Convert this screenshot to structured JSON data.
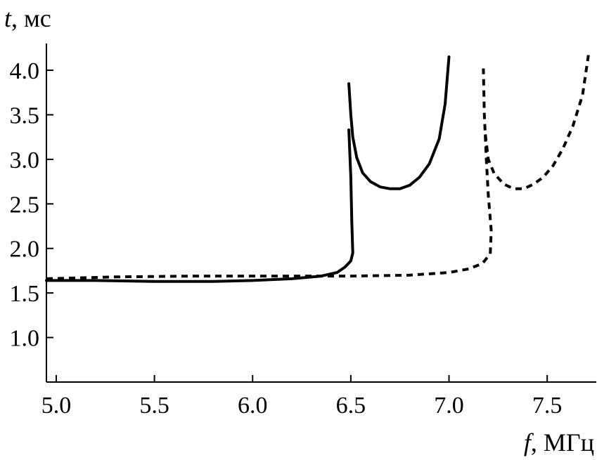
{
  "chart_data": {
    "type": "line",
    "title": "",
    "xlabel": {
      "symbol": "f",
      "unit": ", МГц"
    },
    "ylabel": {
      "symbol": "t",
      "unit": ", мс"
    },
    "xlim": [
      4.95,
      7.75
    ],
    "ylim": [
      0.5,
      4.3
    ],
    "x_ticks": [
      "5.0",
      "5.5",
      "6.0",
      "6.5",
      "7.0",
      "7.5"
    ],
    "y_ticks": [
      "1.0",
      "1.5",
      "2.0",
      "2.5",
      "3.0",
      "3.5",
      "4.0"
    ],
    "grid": false,
    "legend": "none",
    "series": [
      {
        "style": "solid",
        "segments": [
          [
            [
              4.95,
              1.64
            ],
            [
              5.2,
              1.64
            ],
            [
              5.5,
              1.63
            ],
            [
              5.8,
              1.63
            ],
            [
              6.0,
              1.64
            ],
            [
              6.2,
              1.66
            ],
            [
              6.35,
              1.69
            ],
            [
              6.43,
              1.73
            ],
            [
              6.47,
              1.79
            ],
            [
              6.5,
              1.86
            ],
            [
              6.51,
              1.95
            ],
            [
              6.505,
              2.3
            ],
            [
              6.5,
              2.8
            ],
            [
              6.49,
              3.33
            ]
          ],
          [
            [
              6.49,
              3.85
            ],
            [
              6.5,
              3.5
            ],
            [
              6.51,
              3.25
            ],
            [
              6.53,
              3.02
            ],
            [
              6.56,
              2.85
            ],
            [
              6.6,
              2.75
            ],
            [
              6.65,
              2.69
            ],
            [
              6.7,
              2.67
            ],
            [
              6.75,
              2.67
            ],
            [
              6.8,
              2.71
            ],
            [
              6.85,
              2.8
            ],
            [
              6.9,
              2.95
            ],
            [
              6.95,
              3.23
            ],
            [
              6.98,
              3.62
            ],
            [
              7.0,
              4.15
            ]
          ]
        ]
      },
      {
        "style": "dashed",
        "segments": [
          [
            [
              4.95,
              1.66
            ],
            [
              5.3,
              1.68
            ],
            [
              5.7,
              1.69
            ],
            [
              6.1,
              1.69
            ],
            [
              6.5,
              1.69
            ],
            [
              6.8,
              1.7
            ],
            [
              7.0,
              1.73
            ],
            [
              7.1,
              1.77
            ],
            [
              7.17,
              1.83
            ],
            [
              7.21,
              1.94
            ],
            [
              7.215,
              2.2
            ],
            [
              7.2,
              2.6
            ],
            [
              7.19,
              3.0
            ],
            [
              7.18,
              3.5
            ],
            [
              7.175,
              4.02
            ]
          ],
          [
            [
              7.185,
              3.28
            ],
            [
              7.2,
              3.0
            ],
            [
              7.23,
              2.84
            ],
            [
              7.28,
              2.72
            ],
            [
              7.33,
              2.67
            ],
            [
              7.38,
              2.67
            ],
            [
              7.43,
              2.72
            ],
            [
              7.48,
              2.8
            ],
            [
              7.53,
              2.93
            ],
            [
              7.58,
              3.12
            ],
            [
              7.63,
              3.37
            ],
            [
              7.68,
              3.72
            ],
            [
              7.71,
              4.17
            ]
          ]
        ]
      }
    ]
  }
}
